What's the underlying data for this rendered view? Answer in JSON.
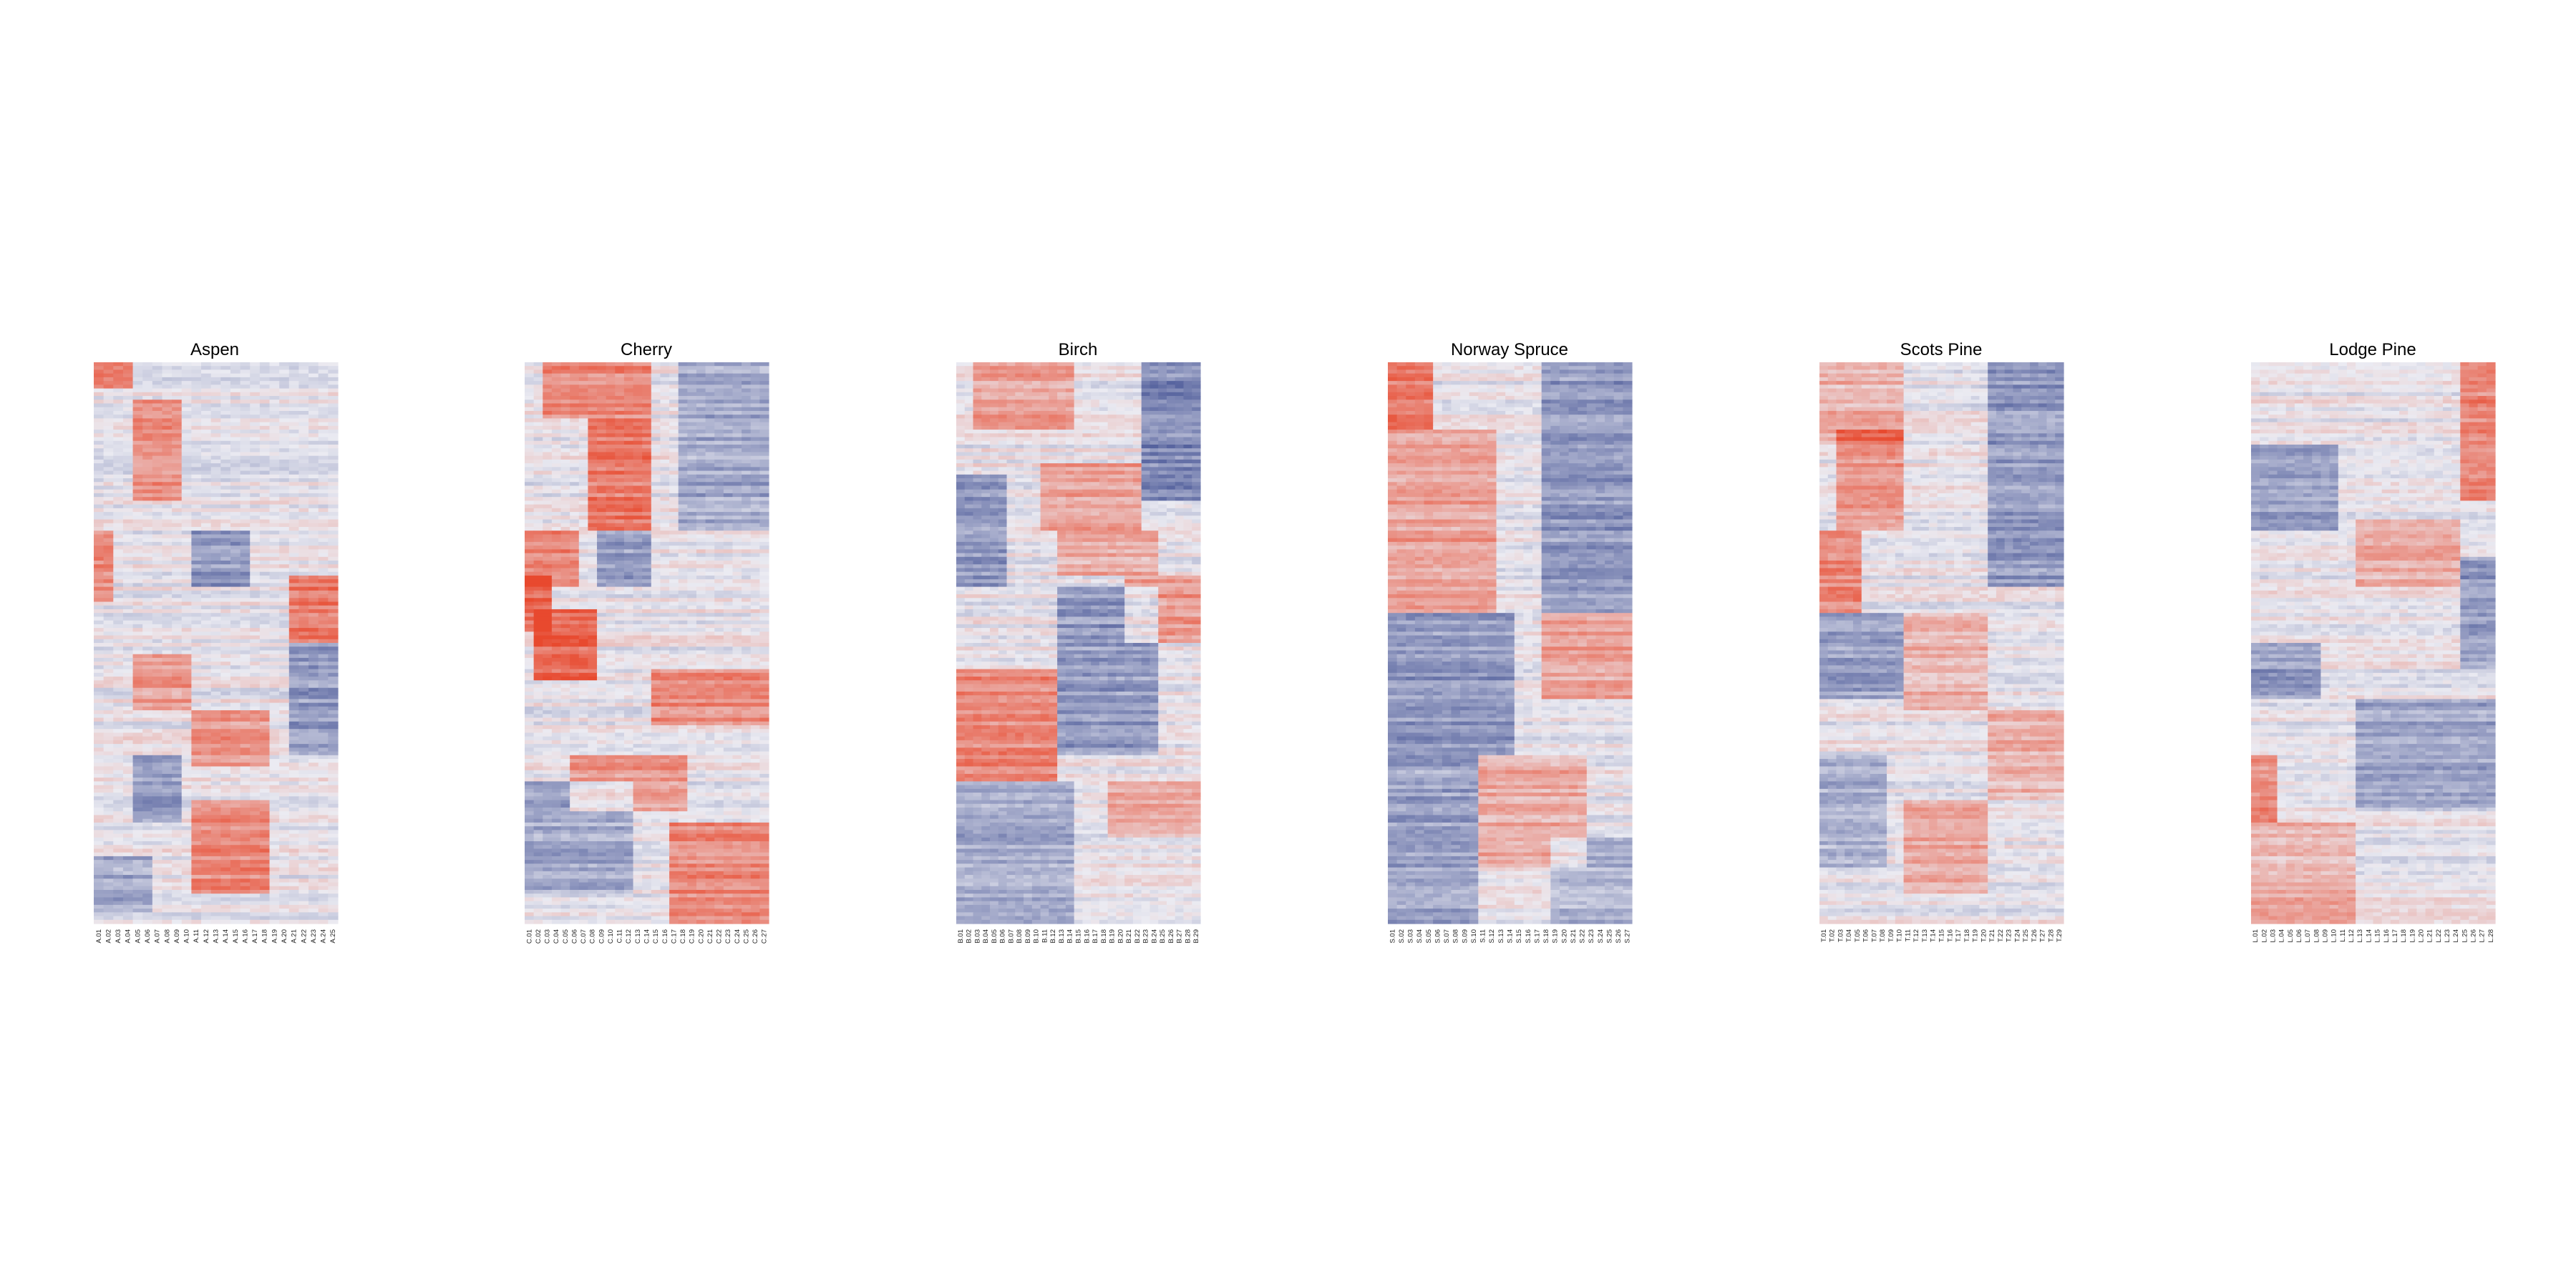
{
  "chart_data": [
    {
      "type": "heatmap",
      "title": "Aspen",
      "prefix": "A",
      "columns": [
        "A.01",
        "A.02",
        "A.03",
        "A.04",
        "A.05",
        "A.06",
        "A.07",
        "A.08",
        "A.09",
        "A.10",
        "A.11",
        "A.12",
        "A.13",
        "A.14",
        "A.15",
        "A.16",
        "A.17",
        "A.18",
        "A.19",
        "A.20",
        "A.21",
        "A.22",
        "A.23",
        "A.24",
        "A.25"
      ],
      "row_count": 150,
      "color_scale": {
        "low": "#3b4a8f",
        "mid": "#ebebf2",
        "high": "#e8492e"
      },
      "value_range": [
        -1,
        1
      ],
      "blocks": [
        {
          "rows": [
            0.0,
            0.05
          ],
          "cols": [
            0,
            4
          ],
          "value": 0.8
        },
        {
          "rows": [
            0.07,
            0.25
          ],
          "cols": [
            4,
            9
          ],
          "value": 0.6
        },
        {
          "rows": [
            0.3,
            0.43
          ],
          "cols": [
            0,
            2
          ],
          "value": 0.6
        },
        {
          "rows": [
            0.38,
            0.5
          ],
          "cols": [
            20,
            25
          ],
          "value": 0.7
        },
        {
          "rows": [
            0.3,
            0.4
          ],
          "cols": [
            10,
            16
          ],
          "value": -0.5
        },
        {
          "rows": [
            0.52,
            0.62
          ],
          "cols": [
            4,
            10
          ],
          "value": 0.5
        },
        {
          "rows": [
            0.62,
            0.72
          ],
          "cols": [
            10,
            18
          ],
          "value": 0.5
        },
        {
          "rows": [
            0.78,
            0.95
          ],
          "cols": [
            10,
            18
          ],
          "value": 0.6
        },
        {
          "rows": [
            0.7,
            0.82
          ],
          "cols": [
            4,
            9
          ],
          "value": -0.5
        },
        {
          "rows": [
            0.5,
            0.7
          ],
          "cols": [
            20,
            25
          ],
          "value": -0.5
        },
        {
          "rows": [
            0.88,
            0.98
          ],
          "cols": [
            0,
            6
          ],
          "value": -0.4
        }
      ]
    },
    {
      "type": "heatmap",
      "title": "Cherry",
      "prefix": "C",
      "columns": [
        "C.01",
        "C.02",
        "C.03",
        "C.04",
        "C.05",
        "C.06",
        "C.07",
        "C.08",
        "C.09",
        "C.10",
        "C.11",
        "C.12",
        "C.13",
        "C.14",
        "C.15",
        "C.16",
        "C.17",
        "C.18",
        "C.19",
        "C.20",
        "C.21",
        "C.22",
        "C.23",
        "C.24",
        "C.25",
        "C.26",
        "C.27"
      ],
      "row_count": 150,
      "color_scale": {
        "low": "#3b4a8f",
        "mid": "#ebebf2",
        "high": "#e8492e"
      },
      "value_range": [
        -1,
        1
      ],
      "blocks": [
        {
          "rows": [
            0.0,
            0.1
          ],
          "cols": [
            2,
            14
          ],
          "value": 0.6
        },
        {
          "rows": [
            0.1,
            0.3
          ],
          "cols": [
            7,
            14
          ],
          "value": 0.7
        },
        {
          "rows": [
            0.3,
            0.4
          ],
          "cols": [
            0,
            6
          ],
          "value": 0.6
        },
        {
          "rows": [
            0.38,
            0.48
          ],
          "cols": [
            0,
            3
          ],
          "value": 0.8
        },
        {
          "rows": [
            0.44,
            0.57
          ],
          "cols": [
            1,
            8
          ],
          "value": 0.8
        },
        {
          "rows": [
            0.55,
            0.65
          ],
          "cols": [
            14,
            27
          ],
          "value": 0.6
        },
        {
          "rows": [
            0.7,
            0.8
          ],
          "cols": [
            5,
            18
          ],
          "value": 0.5
        },
        {
          "rows": [
            0.82,
            1.0
          ],
          "cols": [
            16,
            27
          ],
          "value": 0.6
        },
        {
          "rows": [
            0.0,
            0.3
          ],
          "cols": [
            17,
            27
          ],
          "value": -0.4
        },
        {
          "rows": [
            0.3,
            0.4
          ],
          "cols": [
            8,
            14
          ],
          "value": -0.5
        },
        {
          "rows": [
            0.75,
            0.95
          ],
          "cols": [
            0,
            12
          ],
          "value": -0.4
        }
      ]
    },
    {
      "type": "heatmap",
      "title": "Birch",
      "prefix": "B",
      "columns": [
        "B.01",
        "B.02",
        "B.03",
        "B.04",
        "B.05",
        "B.06",
        "B.07",
        "B.08",
        "B.09",
        "B.10",
        "B.11",
        "B.12",
        "B.13",
        "B.14",
        "B.15",
        "B.16",
        "B.17",
        "B.18",
        "B.19",
        "B.20",
        "B.21",
        "B.22",
        "B.23",
        "B.24",
        "B.25",
        "B.26",
        "B.27",
        "B.28",
        "B.29"
      ],
      "row_count": 150,
      "color_scale": {
        "low": "#3b4a8f",
        "mid": "#ebebf2",
        "high": "#e8492e"
      },
      "value_range": [
        -1,
        1
      ],
      "blocks": [
        {
          "rows": [
            0.0,
            0.12
          ],
          "cols": [
            2,
            14
          ],
          "value": 0.45
        },
        {
          "rows": [
            0.18,
            0.3
          ],
          "cols": [
            10,
            22
          ],
          "value": 0.45
        },
        {
          "rows": [
            0.3,
            0.38
          ],
          "cols": [
            12,
            24
          ],
          "value": 0.4
        },
        {
          "rows": [
            0.38,
            0.5
          ],
          "cols": [
            20,
            29
          ],
          "value": 0.5
        },
        {
          "rows": [
            0.55,
            0.75
          ],
          "cols": [
            0,
            12
          ],
          "value": 0.6
        },
        {
          "rows": [
            0.75,
            0.85
          ],
          "cols": [
            18,
            29
          ],
          "value": 0.4
        },
        {
          "rows": [
            0.0,
            0.25
          ],
          "cols": [
            22,
            29
          ],
          "value": -0.6
        },
        {
          "rows": [
            0.2,
            0.4
          ],
          "cols": [
            0,
            6
          ],
          "value": -0.5
        },
        {
          "rows": [
            0.4,
            0.7
          ],
          "cols": [
            12,
            24
          ],
          "value": -0.5
        },
        {
          "rows": [
            0.75,
            1.0
          ],
          "cols": [
            0,
            14
          ],
          "value": -0.4
        }
      ]
    },
    {
      "type": "heatmap",
      "title": "Norway Spruce",
      "prefix": "S",
      "columns": [
        "S.01",
        "S.02",
        "S.03",
        "S.04",
        "S.05",
        "S.06",
        "S.07",
        "S.08",
        "S.09",
        "S.10",
        "S.11",
        "S.12",
        "S.13",
        "S.14",
        "S.15",
        "S.16",
        "S.17",
        "S.18",
        "S.19",
        "S.20",
        "S.21",
        "S.22",
        "S.23",
        "S.24",
        "S.25",
        "S.26",
        "S.27"
      ],
      "row_count": 150,
      "color_scale": {
        "low": "#3b4a8f",
        "mid": "#ebebf2",
        "high": "#e8492e"
      },
      "value_range": [
        -1,
        1
      ],
      "blocks": [
        {
          "rows": [
            0.0,
            0.12
          ],
          "cols": [
            0,
            5
          ],
          "value": 0.7
        },
        {
          "rows": [
            0.12,
            0.45
          ],
          "cols": [
            0,
            12
          ],
          "value": 0.45
        },
        {
          "rows": [
            0.45,
            0.6
          ],
          "cols": [
            17,
            27
          ],
          "value": 0.45
        },
        {
          "rows": [
            0.7,
            0.9
          ],
          "cols": [
            10,
            22
          ],
          "value": 0.4
        },
        {
          "rows": [
            0.0,
            0.45
          ],
          "cols": [
            17,
            27
          ],
          "value": -0.5
        },
        {
          "rows": [
            0.45,
            0.7
          ],
          "cols": [
            0,
            14
          ],
          "value": -0.5
        },
        {
          "rows": [
            0.7,
            1.0
          ],
          "cols": [
            0,
            10
          ],
          "value": -0.45
        },
        {
          "rows": [
            0.85,
            1.0
          ],
          "cols": [
            18,
            27
          ],
          "value": -0.35
        }
      ]
    },
    {
      "type": "heatmap",
      "title": "Scots Pine",
      "prefix": "T",
      "columns": [
        "T.01",
        "T.02",
        "T.03",
        "T.04",
        "T.05",
        "T.06",
        "T.07",
        "T.08",
        "T.09",
        "T.10",
        "T.11",
        "T.12",
        "T.13",
        "T.14",
        "T.15",
        "T.16",
        "T.17",
        "T.18",
        "T.19",
        "T.20",
        "T.21",
        "T.22",
        "T.23",
        "T.24",
        "T.25",
        "T.26",
        "T.27",
        "T.28",
        "T.29"
      ],
      "row_count": 150,
      "color_scale": {
        "low": "#3b4a8f",
        "mid": "#ebebf2",
        "high": "#e8492e"
      },
      "value_range": [
        -1,
        1
      ],
      "blocks": [
        {
          "rows": [
            0.0,
            0.15
          ],
          "cols": [
            0,
            10
          ],
          "value": 0.35
        },
        {
          "rows": [
            0.12,
            0.3
          ],
          "cols": [
            2,
            10
          ],
          "value": 0.5
        },
        {
          "rows": [
            0.3,
            0.45
          ],
          "cols": [
            0,
            5
          ],
          "value": 0.6
        },
        {
          "rows": [
            0.45,
            0.62
          ],
          "cols": [
            10,
            20
          ],
          "value": 0.35
        },
        {
          "rows": [
            0.62,
            0.78
          ],
          "cols": [
            20,
            29
          ],
          "value": 0.35
        },
        {
          "rows": [
            0.78,
            0.95
          ],
          "cols": [
            10,
            20
          ],
          "value": 0.4
        },
        {
          "rows": [
            0.0,
            0.4
          ],
          "cols": [
            20,
            29
          ],
          "value": -0.5
        },
        {
          "rows": [
            0.45,
            0.6
          ],
          "cols": [
            0,
            10
          ],
          "value": -0.45
        },
        {
          "rows": [
            0.7,
            0.9
          ],
          "cols": [
            0,
            8
          ],
          "value": -0.35
        }
      ]
    },
    {
      "type": "heatmap",
      "title": "Lodge Pine",
      "prefix": "L",
      "columns": [
        "L.01",
        "L.02",
        "L.03",
        "L.04",
        "L.05",
        "L.06",
        "L.07",
        "L.08",
        "L.09",
        "L.10",
        "L.11",
        "L.12",
        "L.13",
        "L.14",
        "L.15",
        "L.16",
        "L.17",
        "L.18",
        "L.19",
        "L.20",
        "L.21",
        "L.22",
        "L.23",
        "L.24",
        "L.25",
        "L.26",
        "L.27",
        "L.28"
      ],
      "row_count": 150,
      "color_scale": {
        "low": "#3b4a8f",
        "mid": "#ebebf2",
        "high": "#e8492e"
      },
      "value_range": [
        -1,
        1
      ],
      "blocks": [
        {
          "rows": [
            0.0,
            0.25
          ],
          "cols": [
            24,
            28
          ],
          "value": 0.6
        },
        {
          "rows": [
            0.28,
            0.4
          ],
          "cols": [
            12,
            24
          ],
          "value": 0.4
        },
        {
          "rows": [
            0.7,
            0.82
          ],
          "cols": [
            0,
            3
          ],
          "value": 0.6
        },
        {
          "rows": [
            0.82,
            1.0
          ],
          "cols": [
            0,
            12
          ],
          "value": 0.35
        },
        {
          "rows": [
            0.15,
            0.3
          ],
          "cols": [
            0,
            10
          ],
          "value": -0.45
        },
        {
          "rows": [
            0.35,
            0.55
          ],
          "cols": [
            24,
            28
          ],
          "value": -0.5
        },
        {
          "rows": [
            0.5,
            0.6
          ],
          "cols": [
            0,
            8
          ],
          "value": -0.5
        },
        {
          "rows": [
            0.6,
            0.8
          ],
          "cols": [
            12,
            28
          ],
          "value": -0.4
        }
      ]
    }
  ]
}
